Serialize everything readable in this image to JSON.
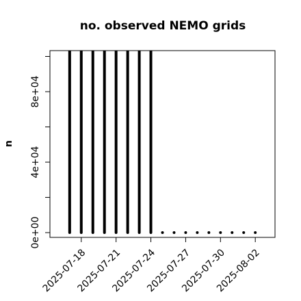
{
  "chart_data": {
    "type": "line-h",
    "title": "no. observed NEMO grids",
    "y_label": "n",
    "x": [
      "2025-07-17",
      "2025-07-18",
      "2025-07-19",
      "2025-07-20",
      "2025-07-21",
      "2025-07-22",
      "2025-07-23",
      "2025-07-24",
      "2025-07-25",
      "2025-07-26",
      "2025-07-27",
      "2025-07-28",
      "2025-07-29",
      "2025-07-30",
      "2025-07-31",
      "2025-08-01",
      "2025-08-02"
    ],
    "values": [
      103300,
      103300,
      103300,
      103300,
      103300,
      103300,
      103300,
      103300,
      0,
      0,
      0,
      0,
      0,
      0,
      0,
      0,
      0
    ],
    "color": "#000000",
    "xlim": [
      "2025-07-15T07:12Z",
      "2025-08-03T16:48Z"
    ],
    "xticks": [
      "2025-07-18",
      "2025-07-21",
      "2025-07-24",
      "2025-07-27",
      "2025-07-30",
      "2025-08-02"
    ],
    "ylim": [
      -2700,
      103300
    ],
    "yticks": [
      {
        "value": 0,
        "label": "0e+00"
      },
      {
        "value": 40000,
        "label": "4e+04"
      },
      {
        "value": 80000,
        "label": "8e+04"
      }
    ],
    "yminor_ticks": [
      20000,
      60000,
      100000
    ]
  }
}
